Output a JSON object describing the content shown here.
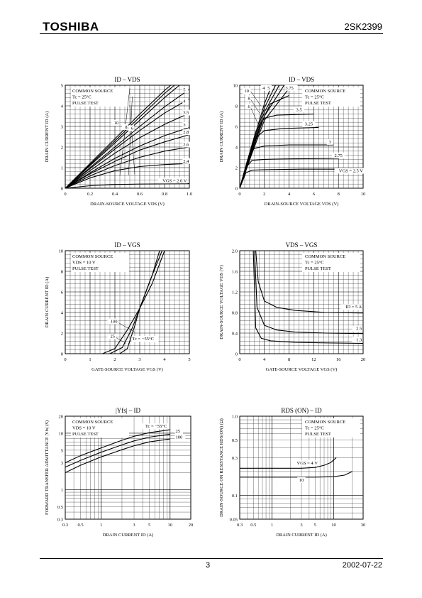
{
  "header": {
    "brand": "TOSHIBA",
    "part_number": "2SK2399"
  },
  "footer": {
    "page": "3",
    "date": "2002-07-22"
  },
  "chart_data": [
    {
      "type": "line",
      "title": "ID – VDS",
      "xlabel": "DRAIN-SOURCE VOLTAGE  VDS   (V)",
      "ylabel": "DRAIN CURRENT   ID   (A)",
      "xlim": [
        0,
        1.0
      ],
      "ylim": [
        0,
        5
      ],
      "xticks": [
        "0",
        "0.2",
        "0.4",
        "0.6",
        "0.8",
        "1.0"
      ],
      "yticks": [
        "0",
        "1",
        "2",
        "3",
        "4",
        "5"
      ],
      "notes": [
        "COMMON SOURCE",
        "Tc = 25°C",
        "PULSE TEST"
      ],
      "series": [
        {
          "name": "10",
          "x": [
            0,
            0.2,
            0.4,
            0.6,
            0.8,
            0.85
          ],
          "y": [
            0,
            1.2,
            2.4,
            3.6,
            4.75,
            5.0
          ]
        },
        {
          "name": "8",
          "x": [
            0,
            0.2,
            0.4,
            0.6,
            0.8,
            0.88
          ],
          "y": [
            0,
            1.15,
            2.3,
            3.45,
            4.6,
            5.0
          ]
        },
        {
          "name": "6",
          "x": [
            0,
            0.2,
            0.4,
            0.6,
            0.8,
            0.92
          ],
          "y": [
            0,
            1.1,
            2.2,
            3.3,
            4.4,
            5.0
          ]
        },
        {
          "name": "5",
          "x": [
            0,
            0.2,
            0.4,
            0.6,
            0.8,
            1.0
          ],
          "y": [
            0,
            1.0,
            2.0,
            3.0,
            3.95,
            4.8
          ]
        },
        {
          "name": "4",
          "x": [
            0,
            0.2,
            0.4,
            0.6,
            0.8,
            1.0
          ],
          "y": [
            0,
            0.95,
            1.9,
            2.8,
            3.65,
            4.35
          ]
        },
        {
          "name": "3.5",
          "x": [
            0,
            0.2,
            0.4,
            0.6,
            0.8,
            1.0
          ],
          "y": [
            0,
            0.85,
            1.7,
            2.45,
            3.1,
            3.65
          ]
        },
        {
          "name": "3",
          "x": [
            0,
            0.2,
            0.4,
            0.6,
            0.8,
            1.0
          ],
          "y": [
            0,
            0.75,
            1.45,
            2.05,
            2.55,
            2.95
          ]
        },
        {
          "name": "2.8",
          "x": [
            0,
            0.2,
            0.4,
            0.6,
            0.8,
            1.0
          ],
          "y": [
            0,
            0.7,
            1.3,
            1.85,
            2.25,
            2.6
          ]
        },
        {
          "name": "2.6",
          "x": [
            0,
            0.2,
            0.4,
            0.6,
            0.8,
            1.0
          ],
          "y": [
            0,
            0.6,
            1.1,
            1.5,
            1.8,
            2.0
          ]
        },
        {
          "name": "2.4",
          "x": [
            0,
            0.2,
            0.4,
            0.6,
            0.8,
            1.0
          ],
          "y": [
            0,
            0.5,
            0.85,
            1.05,
            1.15,
            1.2
          ]
        },
        {
          "name": "VGS = 2.0 V",
          "x": [
            0,
            0.2,
            0.4,
            0.6,
            0.8,
            1.0
          ],
          "y": [
            0,
            0.12,
            0.18,
            0.2,
            0.21,
            0.22
          ]
        }
      ]
    },
    {
      "type": "line",
      "title": "ID – VDS",
      "xlabel": "DRAIN-SOURCE VOLTAGE  VDS   (V)",
      "ylabel": "DRAIN CURRENT   ID   (A)",
      "xlim": [
        0,
        10
      ],
      "ylim": [
        0,
        10
      ],
      "xticks": [
        "0",
        "2",
        "4",
        "6",
        "8",
        "10"
      ],
      "yticks": [
        "0",
        "2",
        "4",
        "6",
        "8",
        "10"
      ],
      "notes": [
        "COMMON SOURCE",
        "Tc = 25°C",
        "PULSE TEST"
      ],
      "series": [
        {
          "name": "10",
          "x": [
            0,
            1.0,
            2.0,
            2.6
          ],
          "y": [
            0,
            4.2,
            8.2,
            10
          ]
        },
        {
          "name": "8",
          "x": [
            0,
            1.0,
            2.0,
            2.9
          ],
          "y": [
            0,
            4.0,
            7.8,
            10
          ]
        },
        {
          "name": "6",
          "x": [
            0,
            1.0,
            2.0,
            3.2
          ],
          "y": [
            0,
            3.8,
            7.4,
            10
          ]
        },
        {
          "name": "5",
          "x": [
            0,
            1.0,
            2.0,
            3.6
          ],
          "y": [
            0,
            3.6,
            7.0,
            10
          ]
        },
        {
          "name": "4",
          "x": [
            0,
            1.0,
            2.0,
            4.2
          ],
          "y": [
            0,
            3.4,
            6.6,
            10
          ]
        },
        {
          "name": "3.75",
          "x": [
            0,
            1.0,
            1.5,
            2.0,
            2.5,
            4.0
          ],
          "y": [
            0,
            3.5,
            5.4,
            7.0,
            8.2,
            9.0
          ]
        },
        {
          "name": "3.5",
          "x": [
            0,
            0.8,
            1.3,
            2.0,
            3.0,
            6.0
          ],
          "y": [
            0,
            3.4,
            5.5,
            6.8,
            7.1,
            7.2
          ]
        },
        {
          "name": "3.25",
          "x": [
            0,
            0.7,
            1.2,
            2.0,
            3.5,
            6.4
          ],
          "y": [
            0,
            3.0,
            4.8,
            5.6,
            5.8,
            5.9
          ]
        },
        {
          "name": "3",
          "x": [
            0,
            0.6,
            1.0,
            2.0,
            4.0,
            7.6
          ],
          "y": [
            0,
            2.6,
            3.8,
            4.1,
            4.2,
            4.2
          ]
        },
        {
          "name": "2.75",
          "x": [
            0,
            0.5,
            1.0,
            2.0,
            4.0,
            8.0
          ],
          "y": [
            0,
            2.0,
            2.7,
            2.8,
            2.85,
            2.9
          ]
        },
        {
          "name": "VGS = 2.5 V",
          "x": [
            0,
            0.5,
            1.0,
            2.0,
            5.0,
            8.0
          ],
          "y": [
            0,
            1.5,
            1.75,
            1.8,
            1.85,
            1.85
          ]
        }
      ]
    },
    {
      "type": "line",
      "title": "ID – VGS",
      "xlabel": "GATE-SOURCE VOLTAGE   VGS   (V)",
      "ylabel": "DRAIN CURRENT   ID   (A)",
      "xlim": [
        0,
        5
      ],
      "ylim": [
        0,
        10
      ],
      "xticks": [
        "0",
        "1",
        "2",
        "3",
        "4",
        "5"
      ],
      "yticks": [
        "0",
        "2",
        "4",
        "6",
        "8",
        "10"
      ],
      "notes": [
        "COMMON SOURCE",
        "VDS = 10 V",
        "PULSE TEST"
      ],
      "series": [
        {
          "name": "100",
          "x": [
            1.5,
            2.0,
            2.5,
            3.0,
            3.5,
            3.8
          ],
          "y": [
            0,
            0.5,
            2.3,
            4.4,
            7.6,
            10
          ]
        },
        {
          "name": "25",
          "x": [
            1.8,
            2.3,
            2.7,
            3.0,
            3.4,
            3.9
          ],
          "y": [
            0,
            0.6,
            2.5,
            4.4,
            7.0,
            10
          ]
        },
        {
          "name": "Tc = −55°C",
          "x": [
            2.2,
            2.5,
            2.8,
            3.0,
            3.5,
            4.0
          ],
          "y": [
            0,
            0.5,
            2.7,
            4.4,
            6.8,
            10
          ]
        }
      ]
    },
    {
      "type": "line",
      "title": "VDS – VGS",
      "xlabel": "GATE-SOURCE VOLTAGE   VGS   (V)",
      "ylabel": "DRAIN-SOURCE VOLTAGE   VDS   (V)",
      "xlim": [
        0,
        20
      ],
      "ylim": [
        0,
        2.0
      ],
      "xticks": [
        "0",
        "4",
        "8",
        "12",
        "16",
        "20"
      ],
      "yticks": [
        "0",
        "0.4",
        "0.8",
        "1.2",
        "1.6",
        "2.0"
      ],
      "notes": [
        "COMMON SOURCE",
        "Tc = 25°C",
        "PULSE TEST"
      ],
      "series": [
        {
          "name": "ID = 5 A",
          "x": [
            2.6,
            3.0,
            4.0,
            6.0,
            9.0,
            14.0,
            20.0
          ],
          "y": [
            2.0,
            1.4,
            1.02,
            0.9,
            0.84,
            0.8,
            0.79
          ]
        },
        {
          "name": "2.5",
          "x": [
            2.4,
            2.8,
            4.0,
            6.0,
            9.0,
            14.0,
            20.0
          ],
          "y": [
            2.0,
            0.9,
            0.55,
            0.46,
            0.42,
            0.4,
            0.39
          ]
        },
        {
          "name": "1.3",
          "x": [
            2.2,
            2.6,
            3.5,
            5.0,
            9.0,
            14.0,
            20.0
          ],
          "y": [
            2.0,
            0.5,
            0.3,
            0.25,
            0.22,
            0.21,
            0.2
          ]
        }
      ]
    },
    {
      "type": "line",
      "title": "|Yfs| – ID",
      "xlabel": "DRAIN CURRENT   ID   (A)",
      "ylabel": "FORWARD TRANSFER ADMITTANCE |Yfs|  (S)",
      "log_x": true,
      "log_y": true,
      "xlim": [
        0.3,
        20
      ],
      "ylim": [
        0.3,
        20
      ],
      "xticks": [
        "0.3",
        "0.5",
        "1",
        "3",
        "5",
        "10",
        "20"
      ],
      "xtick_values": [
        0.3,
        0.5,
        1,
        3,
        5,
        10,
        20
      ],
      "yticks": [
        "0.3",
        "0.5",
        "1",
        "3",
        "5",
        "10",
        "20"
      ],
      "ytick_values": [
        0.3,
        0.5,
        1,
        3,
        5,
        10,
        20
      ],
      "notes": [
        "COMMON SOURCE",
        "VDS = 10 V",
        "PULSE TEST"
      ],
      "series": [
        {
          "name": "Tc = −55°C",
          "x": [
            0.3,
            0.5,
            1,
            2,
            3,
            5,
            10
          ],
          "y": [
            3.0,
            4.0,
            5.5,
            7.5,
            8.8,
            10.2,
            11.5
          ]
        },
        {
          "name": "25",
          "x": [
            0.3,
            0.5,
            1,
            2,
            3,
            5,
            10
          ],
          "y": [
            2.5,
            3.3,
            4.6,
            6.2,
            7.3,
            8.5,
            9.6
          ]
        },
        {
          "name": "100",
          "x": [
            0.3,
            0.5,
            1,
            2,
            3,
            5,
            10
          ],
          "y": [
            2.0,
            2.7,
            3.8,
            5.1,
            6.0,
            7.0,
            7.9
          ]
        }
      ]
    },
    {
      "type": "line",
      "title": "RDS (ON) – ID",
      "xlabel": "DRAIN CURRENT   ID   (A)",
      "ylabel": "DRAIN-SOURCE ON RESISTANCE RDS(ON)  (Ω)",
      "log_x": true,
      "log_y": true,
      "xlim": [
        0.3,
        30
      ],
      "ylim": [
        0.05,
        1.0
      ],
      "xticks": [
        "0.3",
        "0.5",
        "1",
        "3",
        "5",
        "10",
        "30"
      ],
      "xtick_values": [
        0.3,
        0.5,
        1,
        3,
        5,
        10,
        30
      ],
      "yticks": [
        "0.05",
        "0.1",
        "0.3",
        "0.5",
        "1.0"
      ],
      "ytick_values": [
        0.05,
        0.1,
        0.3,
        0.5,
        1.0
      ],
      "notes": [
        "COMMON SOURCE",
        "Tc = 25°C",
        "PULSE TEST"
      ],
      "series": [
        {
          "name": "VGS = 4 V",
          "x": [
            0.3,
            1,
            3,
            5,
            7,
            9,
            11
          ],
          "y": [
            0.22,
            0.22,
            0.22,
            0.225,
            0.24,
            0.26,
            0.3
          ]
        },
        {
          "name": "10",
          "x": [
            0.3,
            1,
            3,
            5,
            10,
            15,
            20
          ],
          "y": [
            0.17,
            0.17,
            0.17,
            0.17,
            0.172,
            0.18,
            0.2
          ]
        }
      ]
    }
  ]
}
